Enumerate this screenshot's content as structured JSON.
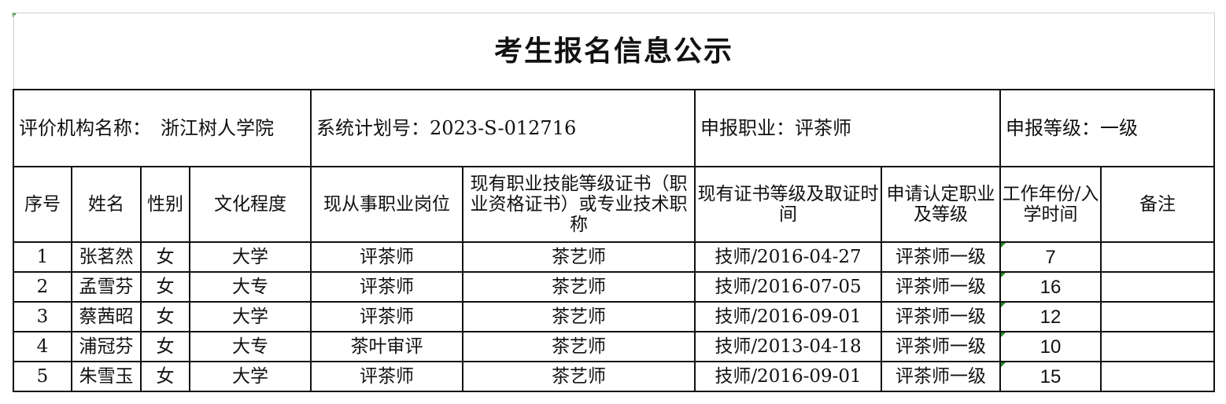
{
  "title": "考生报名信息公示",
  "info": {
    "org": "评价机构名称：　浙江树人学院",
    "plan": "系统计划号：2023-S-012716",
    "occupation": "申报职业：评茶师",
    "level": "申报等级：一级"
  },
  "headers": [
    "序号",
    "姓名",
    "性别",
    "文化程度",
    "现从事职业岗位",
    "现有职业技能等级证书（职业资格证书）或专业技术职称",
    "现有证书等级及取证时间",
    "申请认定职业及等级",
    "工作年份/入学时间",
    "备注"
  ],
  "rows": [
    [
      "1",
      "张茗然",
      "女",
      "大学",
      "评茶师",
      "茶艺师",
      "技师/2016-04-27",
      "评茶师一级",
      "7",
      ""
    ],
    [
      "2",
      "孟雪芬",
      "女",
      "大专",
      "评茶师",
      "茶艺师",
      "技师/2016-07-05",
      "评茶师一级",
      "16",
      ""
    ],
    [
      "3",
      "蔡茜昭",
      "女",
      "大学",
      "评茶师",
      "茶艺师",
      "技师/2016-09-01",
      "评茶师一级",
      "12",
      ""
    ],
    [
      "4",
      "浦冠芬",
      "女",
      "大专",
      "茶叶审评",
      "茶艺师",
      "技师/2013-04-18",
      "评茶师一级",
      "10",
      ""
    ],
    [
      "5",
      "朱雪玉",
      "女",
      "大学",
      "评茶师",
      "茶艺师",
      "技师/2016-09-01",
      "评茶师一级",
      "15",
      ""
    ]
  ],
  "colors": {
    "border": "#111111",
    "marker": "#1e8a1e"
  }
}
